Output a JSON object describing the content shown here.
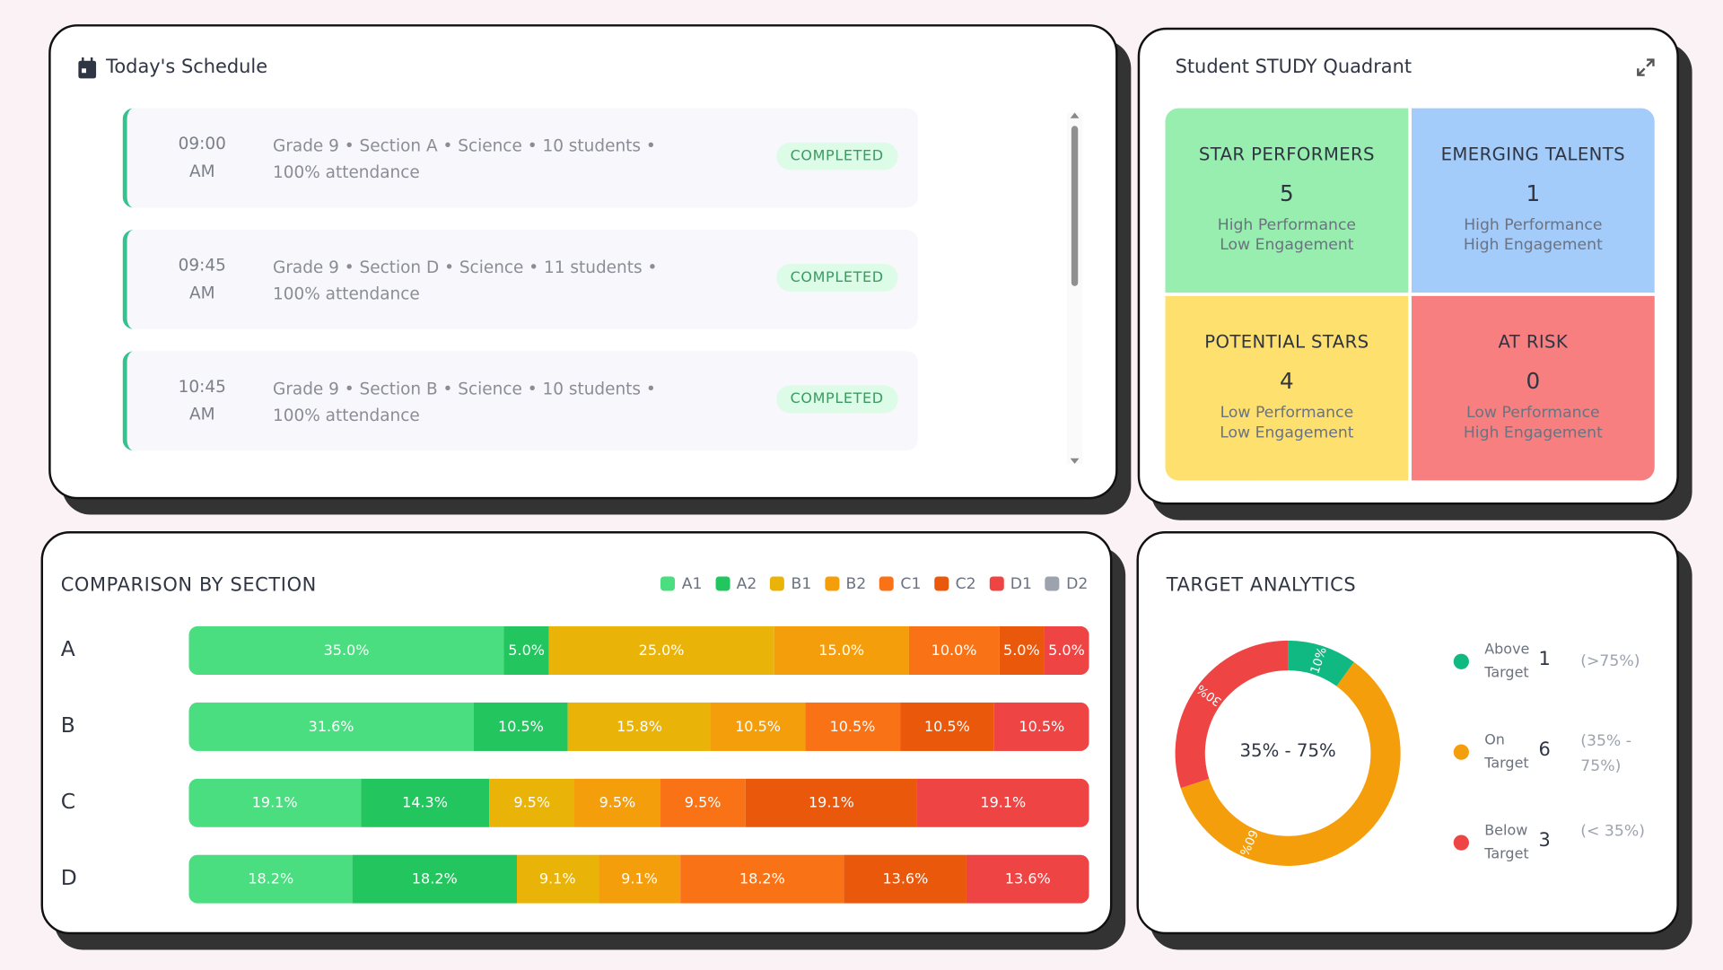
{
  "schedule": {
    "title": "Today's Schedule",
    "items": [
      {
        "time": "09:00",
        "ampm": "AM",
        "desc": "Grade 9 • Section A • Science • 10 students • 100% attendance",
        "status": "COMPLETED"
      },
      {
        "time": "09:45",
        "ampm": "AM",
        "desc": "Grade 9 • Section D • Science • 11 students • 100% attendance",
        "status": "COMPLETED"
      },
      {
        "time": "10:45",
        "ampm": "AM",
        "desc": "Grade 9 • Section B • Science • 10 students • 100% attendance",
        "status": "COMPLETED"
      }
    ]
  },
  "quadrant": {
    "title": "Student STUDY Quadrant",
    "cells": [
      {
        "name": "STAR PERFORMERS",
        "count": "5",
        "l1": "High Performance",
        "l2": "Low Engagement",
        "color": "#97eeae"
      },
      {
        "name": "EMERGING TALENTS",
        "count": "1",
        "l1": "High Performance",
        "l2": "High Engagement",
        "color": "#a3ccfb"
      },
      {
        "name": "POTENTIAL STARS",
        "count": "4",
        "l1": "Low Performance",
        "l2": "Low Engagement",
        "color": "#fde06e"
      },
      {
        "name": "AT RISK",
        "count": "0",
        "l1": "Low Performance",
        "l2": "High Engagement",
        "color": "#f87f7f"
      }
    ]
  },
  "chart_data": [
    {
      "type": "bar",
      "stacked": true,
      "orientation": "horizontal",
      "title": "COMPARISON BY SECTION",
      "legend_position": "top-right",
      "series_names": [
        "A1",
        "A2",
        "B1",
        "B2",
        "C1",
        "C2",
        "D1",
        "D2"
      ],
      "colors": [
        "#4ade80",
        "#22c55e",
        "#eab308",
        "#f59e0b",
        "#f97316",
        "#ea580c",
        "#ef4444",
        "#9ca3af"
      ],
      "categories": [
        "A",
        "B",
        "C",
        "D"
      ],
      "values": [
        [
          35.0,
          5.0,
          25.0,
          15.0,
          10.0,
          5.0,
          5.0,
          0
        ],
        [
          31.6,
          10.5,
          15.8,
          10.5,
          10.5,
          10.5,
          10.5,
          0
        ],
        [
          19.1,
          14.3,
          9.5,
          9.5,
          9.5,
          19.1,
          19.1,
          0
        ],
        [
          18.2,
          18.2,
          9.1,
          9.1,
          18.2,
          13.6,
          13.6,
          0
        ]
      ]
    },
    {
      "type": "pie",
      "variant": "doughnut",
      "title": "TARGET ANALYTICS",
      "center_label": "35% - 75%",
      "slices": [
        {
          "label": "10%",
          "value": 10,
          "color": "#10b981"
        },
        {
          "label": "60%",
          "value": 60,
          "color": "#f59e0b"
        },
        {
          "label": "30%",
          "value": 30,
          "color": "#ef4444"
        }
      ],
      "legend": [
        {
          "l1": "Above",
          "l2": "Target",
          "count": "1",
          "range": "(>75%)",
          "color": "#10b981"
        },
        {
          "l1": "On",
          "l2": "Target",
          "count": "6",
          "range": "(35% - 75%)",
          "color": "#f59e0b"
        },
        {
          "l1": "Below",
          "l2": "Target",
          "count": "3",
          "range": "(< 35%)",
          "color": "#ef4444"
        }
      ]
    }
  ]
}
